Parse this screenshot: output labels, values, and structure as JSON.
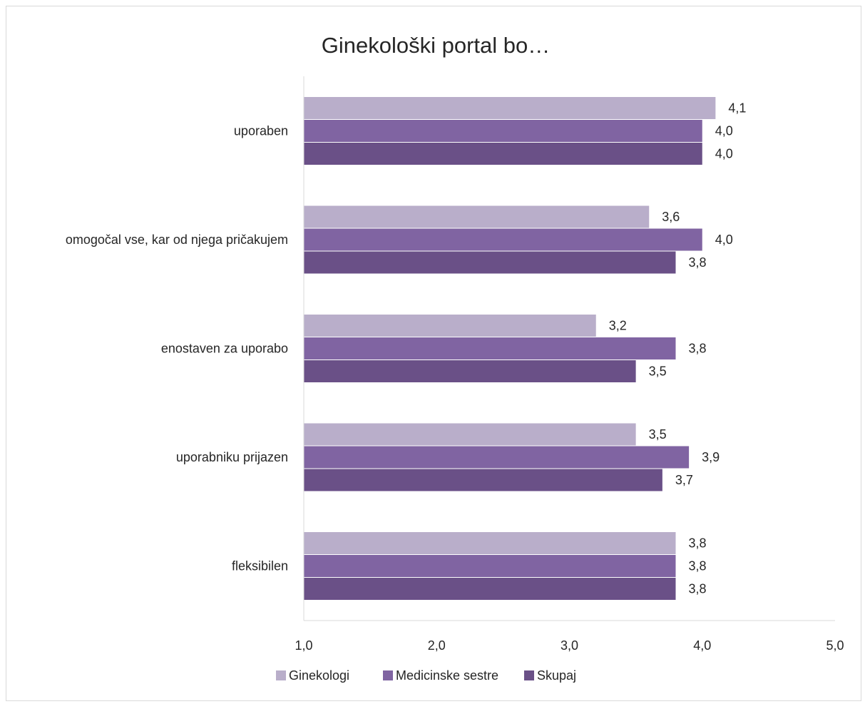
{
  "chart_data": {
    "type": "bar",
    "orientation": "horizontal",
    "title": "Ginekološki portal bo…",
    "categories": [
      "uporaben",
      "omogočal vse, kar od njega pričakujem",
      "enostaven za uporabo",
      "uporabniku prijazen",
      "fleksibilen"
    ],
    "series": [
      {
        "name": "Ginekologi",
        "color": "#b9aeca",
        "values": [
          4.1,
          3.6,
          3.2,
          3.5,
          3.8
        ],
        "labels": [
          "4,1",
          "3,6",
          "3,2",
          "3,5",
          "3,8"
        ]
      },
      {
        "name": "Medicinske sestre",
        "color": "#8064a2",
        "values": [
          4.0,
          4.0,
          3.8,
          3.9,
          3.8
        ],
        "labels": [
          "4,0",
          "4,0",
          "3,8",
          "3,9",
          "3,8"
        ]
      },
      {
        "name": "Skupaj",
        "color": "#6a5087",
        "values": [
          4.0,
          3.8,
          3.5,
          3.7,
          3.8
        ],
        "labels": [
          "4,0",
          "3,8",
          "3,5",
          "3,7",
          "3,8"
        ]
      }
    ],
    "xlim": [
      1.0,
      5.0
    ],
    "xticks": [
      1.0,
      2.0,
      3.0,
      4.0,
      5.0
    ],
    "xtick_labels": [
      "1,0",
      "2,0",
      "3,0",
      "4,0",
      "5,0"
    ],
    "grid": false,
    "legend_position": "bottom"
  }
}
